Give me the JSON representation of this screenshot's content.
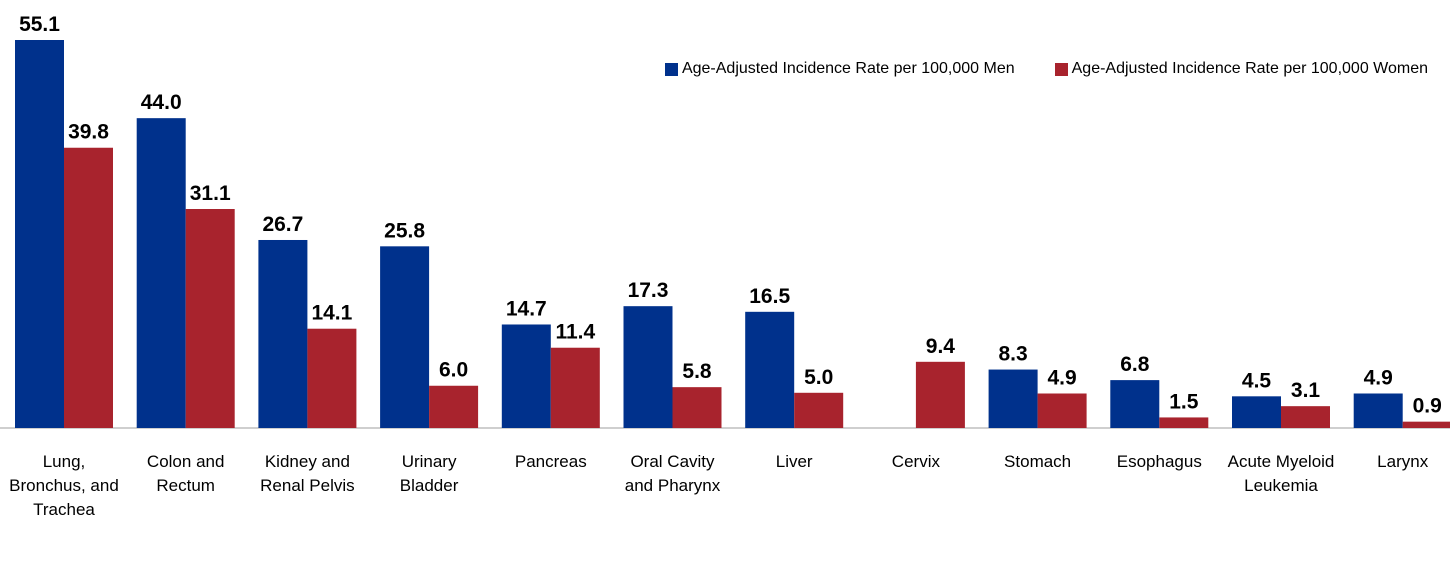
{
  "chart_data": {
    "type": "bar",
    "categories": [
      "Lung, Bronchus, and Trachea",
      "Colon and Rectum",
      "Kidney and Renal Pelvis",
      "Urinary Bladder",
      "Pancreas",
      "Oral Cavity and Pharynx",
      "Liver",
      "Cervix",
      "Stomach",
      "Esophagus",
      "Acute Myeloid Leukemia",
      "Larynx"
    ],
    "series": [
      {
        "name": "Age-Adjusted Incidence Rate per 100,000 Men",
        "color": "#00318c",
        "values": [
          55.1,
          44.0,
          26.7,
          25.8,
          14.7,
          17.3,
          16.5,
          null,
          8.3,
          6.8,
          4.5,
          4.9
        ],
        "value_labels": [
          "55.1",
          "44.0",
          "26.7",
          "25.8",
          "14.7",
          "17.3",
          "16.5",
          null,
          "8.3",
          "6.8",
          "4.5",
          "4.9"
        ]
      },
      {
        "name": "Age-Adjusted Incidence Rate per 100,000 Women",
        "color": "#a8232d",
        "values": [
          39.8,
          31.1,
          14.1,
          6.0,
          11.4,
          5.8,
          5.0,
          9.4,
          4.9,
          1.5,
          3.1,
          0.9
        ],
        "value_labels": [
          "39.8",
          "31.1",
          "14.1",
          "6.0",
          "11.4",
          "5.8",
          "5.0",
          "9.4",
          "4.9",
          "1.5",
          "3.1",
          "0.9"
        ]
      }
    ],
    "legend": "top-right"
  }
}
